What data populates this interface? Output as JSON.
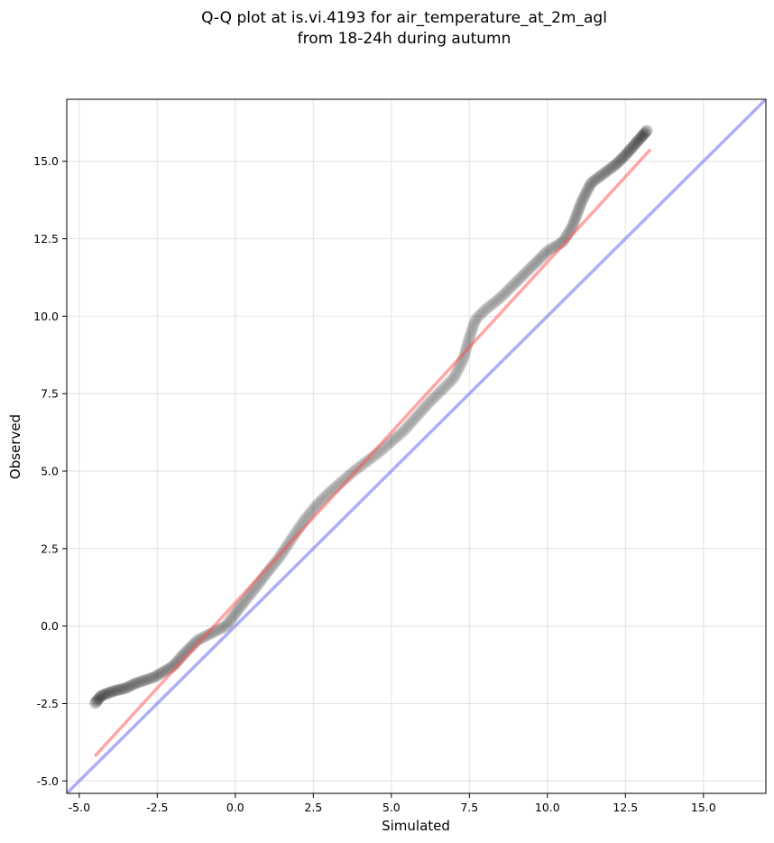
{
  "chart_data": {
    "type": "scatter",
    "title": [
      "Q-Q plot at is.vi.4193 for air_temperature_at_2m_agl",
      "from 18-24h during autumn"
    ],
    "xlabel": "Simulated",
    "ylabel": "Observed",
    "xlim": [
      -5.4,
      17.0
    ],
    "ylim": [
      -5.4,
      17.0
    ],
    "x_ticks": [
      -5.0,
      -2.5,
      0.0,
      2.5,
      5.0,
      7.5,
      10.0,
      12.5,
      15.0
    ],
    "y_ticks": [
      -5.0,
      -2.5,
      0.0,
      2.5,
      5.0,
      7.5,
      10.0,
      12.5,
      15.0
    ],
    "x_tick_labels": [
      "-5.0",
      "-2.5",
      "0.0",
      "2.5",
      "5.0",
      "7.5",
      "10.0",
      "12.5",
      "15.0"
    ],
    "y_tick_labels": [
      "-5.0",
      "-2.5",
      "0.0",
      "2.5",
      "5.0",
      "7.5",
      "10.0",
      "12.5",
      "15.0"
    ],
    "grid": true,
    "colors": {
      "points": "#000000",
      "fit_line": "#ff4d4d",
      "identity_line": "#6b6bf0",
      "grid": "#e6e6e6"
    },
    "quantile_curve": [
      [
        -4.5,
        -2.5
      ],
      [
        -4.3,
        -2.25
      ],
      [
        -3.9,
        -2.1
      ],
      [
        -3.5,
        -2.0
      ],
      [
        -3.2,
        -1.85
      ],
      [
        -2.6,
        -1.65
      ],
      [
        -2.0,
        -1.3
      ],
      [
        -1.6,
        -0.85
      ],
      [
        -1.2,
        -0.45
      ],
      [
        -0.7,
        -0.2
      ],
      [
        -0.3,
        0.0
      ],
      [
        0.0,
        0.4
      ],
      [
        0.3,
        0.8
      ],
      [
        0.7,
        1.3
      ],
      [
        1.0,
        1.7
      ],
      [
        1.4,
        2.2
      ],
      [
        1.8,
        2.8
      ],
      [
        2.2,
        3.4
      ],
      [
        2.6,
        3.9
      ],
      [
        3.0,
        4.3
      ],
      [
        3.4,
        4.65
      ],
      [
        3.8,
        5.0
      ],
      [
        4.2,
        5.3
      ],
      [
        4.6,
        5.6
      ],
      [
        5.0,
        5.95
      ],
      [
        5.4,
        6.3
      ],
      [
        5.8,
        6.75
      ],
      [
        6.2,
        7.2
      ],
      [
        6.6,
        7.6
      ],
      [
        7.0,
        8.0
      ],
      [
        7.3,
        8.6
      ],
      [
        7.5,
        9.3
      ],
      [
        7.7,
        9.9
      ],
      [
        8.0,
        10.2
      ],
      [
        8.5,
        10.6
      ],
      [
        9.0,
        11.1
      ],
      [
        9.5,
        11.6
      ],
      [
        10.0,
        12.1
      ],
      [
        10.5,
        12.4
      ],
      [
        10.8,
        12.9
      ],
      [
        11.1,
        13.7
      ],
      [
        11.4,
        14.3
      ],
      [
        11.8,
        14.6
      ],
      [
        12.2,
        14.9
      ],
      [
        12.5,
        15.2
      ],
      [
        13.2,
        16.0
      ]
    ],
    "n_points": 420,
    "fit_line": {
      "x1": -4.5,
      "x2": 13.3,
      "slope": 1.1,
      "intercept": 0.75
    },
    "identity_line": {
      "slope": 1.0,
      "intercept": 0.0
    }
  }
}
